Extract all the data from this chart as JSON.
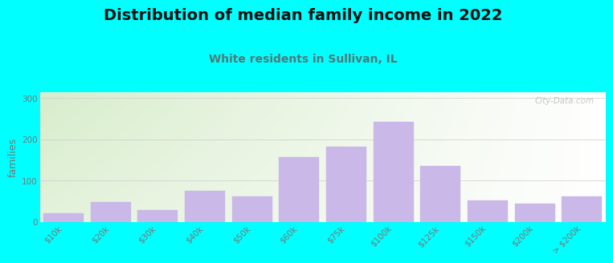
{
  "title": "Distribution of median family income in 2022",
  "subtitle": "White residents in Sullivan, IL",
  "ylabel": "families",
  "categories": [
    "$10k",
    "$20k",
    "$30k",
    "$40k",
    "$50k",
    "$60k",
    "$75k",
    "$100k",
    "$125k",
    "$150k",
    "$200k",
    "> $200k"
  ],
  "values": [
    20,
    48,
    28,
    75,
    62,
    158,
    182,
    243,
    136,
    52,
    44,
    62
  ],
  "bar_color": "#c9b8e8",
  "bar_edgecolor": "#c9b8e8",
  "background_outer": "#00ffff",
  "background_inner_topleft": "#d8edcc",
  "background_inner_right": "#f0f4f8",
  "background_inner_bottom": "#ffffff",
  "yticks": [
    0,
    100,
    200,
    300
  ],
  "ylim": [
    0,
    315
  ],
  "title_fontsize": 14,
  "subtitle_fontsize": 10,
  "ylabel_fontsize": 9,
  "tick_fontsize": 7.5,
  "tick_color": "#777777",
  "subtitle_color": "#557777",
  "title_color": "#111111",
  "watermark": "City-Data.com"
}
